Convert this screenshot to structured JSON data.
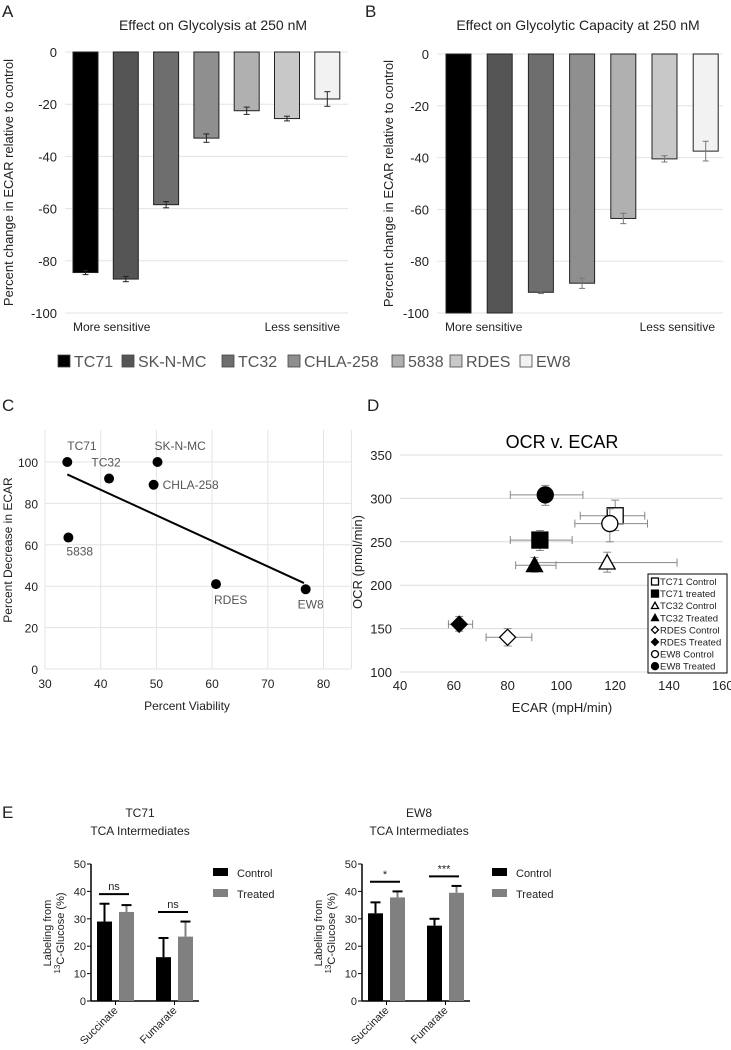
{
  "panel_labels": [
    "A",
    "B",
    "C",
    "D",
    "E"
  ],
  "chart_data": [
    {
      "id": "A",
      "type": "bar",
      "title": "Effect on Glycolysis at 250 nM",
      "ylabel": "Percent change in ECAR relative to control",
      "xlabel_left": "More sensitive",
      "xlabel_right": "Less sensitive",
      "ylim": [
        -100,
        0
      ],
      "yticks": [
        0,
        -20,
        -40,
        -60,
        -80,
        -100
      ],
      "grid": true,
      "categories": [
        "TC71",
        "SK-N-MC",
        "TC32",
        "CHLA-258",
        "5838",
        "RDES",
        "EW8"
      ],
      "values": [
        -84.5,
        -87,
        -58.5,
        -33,
        -22.5,
        -25.5,
        -18
      ],
      "errors": [
        0.8,
        1,
        1.2,
        1.6,
        1.4,
        0.9,
        2.8
      ]
    },
    {
      "id": "B",
      "type": "bar",
      "title": "Effect on Glycolytic Capacity at 250 nM",
      "ylabel": "Percent change in ECAR relative to control",
      "xlabel_left": "More sensitive",
      "xlabel_right": "Less sensitive",
      "ylim": [
        -100,
        0
      ],
      "yticks": [
        0,
        -20,
        -40,
        -60,
        -80,
        -100
      ],
      "grid": true,
      "categories": [
        "TC71",
        "SK-N-MC",
        "TC32",
        "CHLA-258",
        "5838",
        "RDES",
        "EW8"
      ],
      "values": [
        -100,
        -100,
        -92,
        -88.5,
        -63.5,
        -40.5,
        -37.5
      ],
      "errors": [
        0,
        0,
        0.5,
        2,
        2,
        1.2,
        3.8
      ]
    },
    {
      "id": "legend_AB",
      "type": "legend",
      "entries": [
        "TC71",
        "SK-N-MC",
        "TC32",
        "CHLA-258",
        "5838",
        "RDES",
        "EW8"
      ],
      "colors": [
        "#000000",
        "#555555",
        "#6e6e6e",
        "#8f8f8f",
        "#b0b0b0",
        "#c8c8c8",
        "#f2f2f2"
      ]
    },
    {
      "id": "C",
      "type": "scatter",
      "xlabel": "Percent Viability",
      "ylabel": "Percent Decrease in ECAR",
      "xlim": [
        30,
        85
      ],
      "ylim": [
        0,
        110
      ],
      "xticks": [
        30,
        40,
        50,
        60,
        70,
        80
      ],
      "yticks": [
        0,
        20,
        40,
        60,
        80,
        100
      ],
      "grid": true,
      "points": [
        {
          "label": "TC71",
          "x": 34,
          "y": 100
        },
        {
          "label": "TC32",
          "x": 41.5,
          "y": 92
        },
        {
          "label": "SK-N-MC",
          "x": 50.2,
          "y": 100
        },
        {
          "label": "CHLA-258",
          "x": 49.5,
          "y": 89
        },
        {
          "label": "5838",
          "x": 34.2,
          "y": 63.5
        },
        {
          "label": "RDES",
          "x": 60.7,
          "y": 41
        },
        {
          "label": "EW8",
          "x": 76.8,
          "y": 38.5
        }
      ],
      "trendline": {
        "x": [
          34,
          76.5
        ],
        "y": [
          94,
          41.5
        ]
      }
    },
    {
      "id": "D",
      "type": "scatter",
      "title": "OCR v. ECAR",
      "xlabel": "ECAR (mpH/min)",
      "ylabel": "OCR (pmol/min)",
      "xlim": [
        40,
        160
      ],
      "ylim": [
        100,
        350
      ],
      "xticks": [
        40,
        60,
        80,
        100,
        120,
        140,
        160
      ],
      "yticks": [
        100,
        150,
        200,
        250,
        300,
        350
      ],
      "grid": true,
      "legend_position": "bottom-right",
      "series": [
        {
          "name": "TC71 Control",
          "marker": "square",
          "filled": false,
          "x": 120,
          "y": 280,
          "xerr": [
            107,
            131
          ],
          "yerr": [
            263,
            298
          ]
        },
        {
          "name": "TC71 treated",
          "marker": "square",
          "filled": true,
          "x": 92,
          "y": 252,
          "xerr": [
            81,
            104
          ],
          "yerr": [
            240,
            263
          ]
        },
        {
          "name": "TC32 Control",
          "marker": "triangle",
          "filled": false,
          "x": 117,
          "y": 226,
          "xerr": [
            91,
            143
          ],
          "yerr": [
            215,
            238
          ]
        },
        {
          "name": "TC32 Treated",
          "marker": "triangle",
          "filled": true,
          "x": 90,
          "y": 223,
          "xerr": [
            83,
            98
          ],
          "yerr": [
            215,
            232
          ]
        },
        {
          "name": "RDES Control",
          "marker": "diamond",
          "filled": false,
          "x": 80,
          "y": 140,
          "xerr": [
            72,
            89
          ],
          "yerr": [
            130,
            150
          ]
        },
        {
          "name": "RDES Treated",
          "marker": "diamond",
          "filled": true,
          "x": 62,
          "y": 155,
          "xerr": [
            58,
            67
          ],
          "yerr": [
            147,
            164
          ]
        },
        {
          "name": "EW8 Control",
          "marker": "circle",
          "filled": false,
          "x": 118,
          "y": 271,
          "xerr": [
            105,
            132
          ],
          "yerr": [
            250,
            288
          ]
        },
        {
          "name": "EW8 Treated",
          "marker": "circle",
          "filled": true,
          "x": 94,
          "y": 304,
          "xerr": [
            81,
            108
          ],
          "yerr": [
            292,
            315
          ]
        }
      ]
    },
    {
      "id": "E1",
      "type": "bar",
      "title": "TC71",
      "subtitle": "TCA Intermediates",
      "ylabel_line1": "Labeling from",
      "ylabel_line2_sup": "13",
      "ylabel_line2": "C-Glucose (%)",
      "ylim": [
        0,
        50
      ],
      "yticks": [
        0,
        10,
        20,
        30,
        40,
        50
      ],
      "categories": [
        "Succinate",
        "Fumarate"
      ],
      "series": [
        {
          "name": "Control",
          "color": "#000000",
          "values": [
            29,
            16
          ],
          "err_top": [
            35.5,
            23
          ]
        },
        {
          "name": "Treated",
          "color": "#808080",
          "values": [
            32.5,
            23.5
          ],
          "err_top": [
            35,
            29
          ]
        }
      ],
      "significance": [
        "ns",
        "ns"
      ]
    },
    {
      "id": "E2",
      "type": "bar",
      "title": "EW8",
      "subtitle": "TCA Intermediates",
      "ylabel_line1": "Labeling from",
      "ylabel_line2_sup": "13",
      "ylabel_line2": "C-Glucose (%)",
      "ylim": [
        0,
        50
      ],
      "yticks": [
        0,
        10,
        20,
        30,
        40,
        50
      ],
      "categories": [
        "Succinate",
        "Fumarate"
      ],
      "series": [
        {
          "name": "Control",
          "color": "#000000",
          "values": [
            32,
            27.5
          ],
          "err_top": [
            36,
            30
          ]
        },
        {
          "name": "Treated",
          "color": "#808080",
          "values": [
            37.8,
            39.5
          ],
          "err_top": [
            40,
            42
          ]
        }
      ],
      "significance": [
        "*",
        "***"
      ]
    }
  ]
}
